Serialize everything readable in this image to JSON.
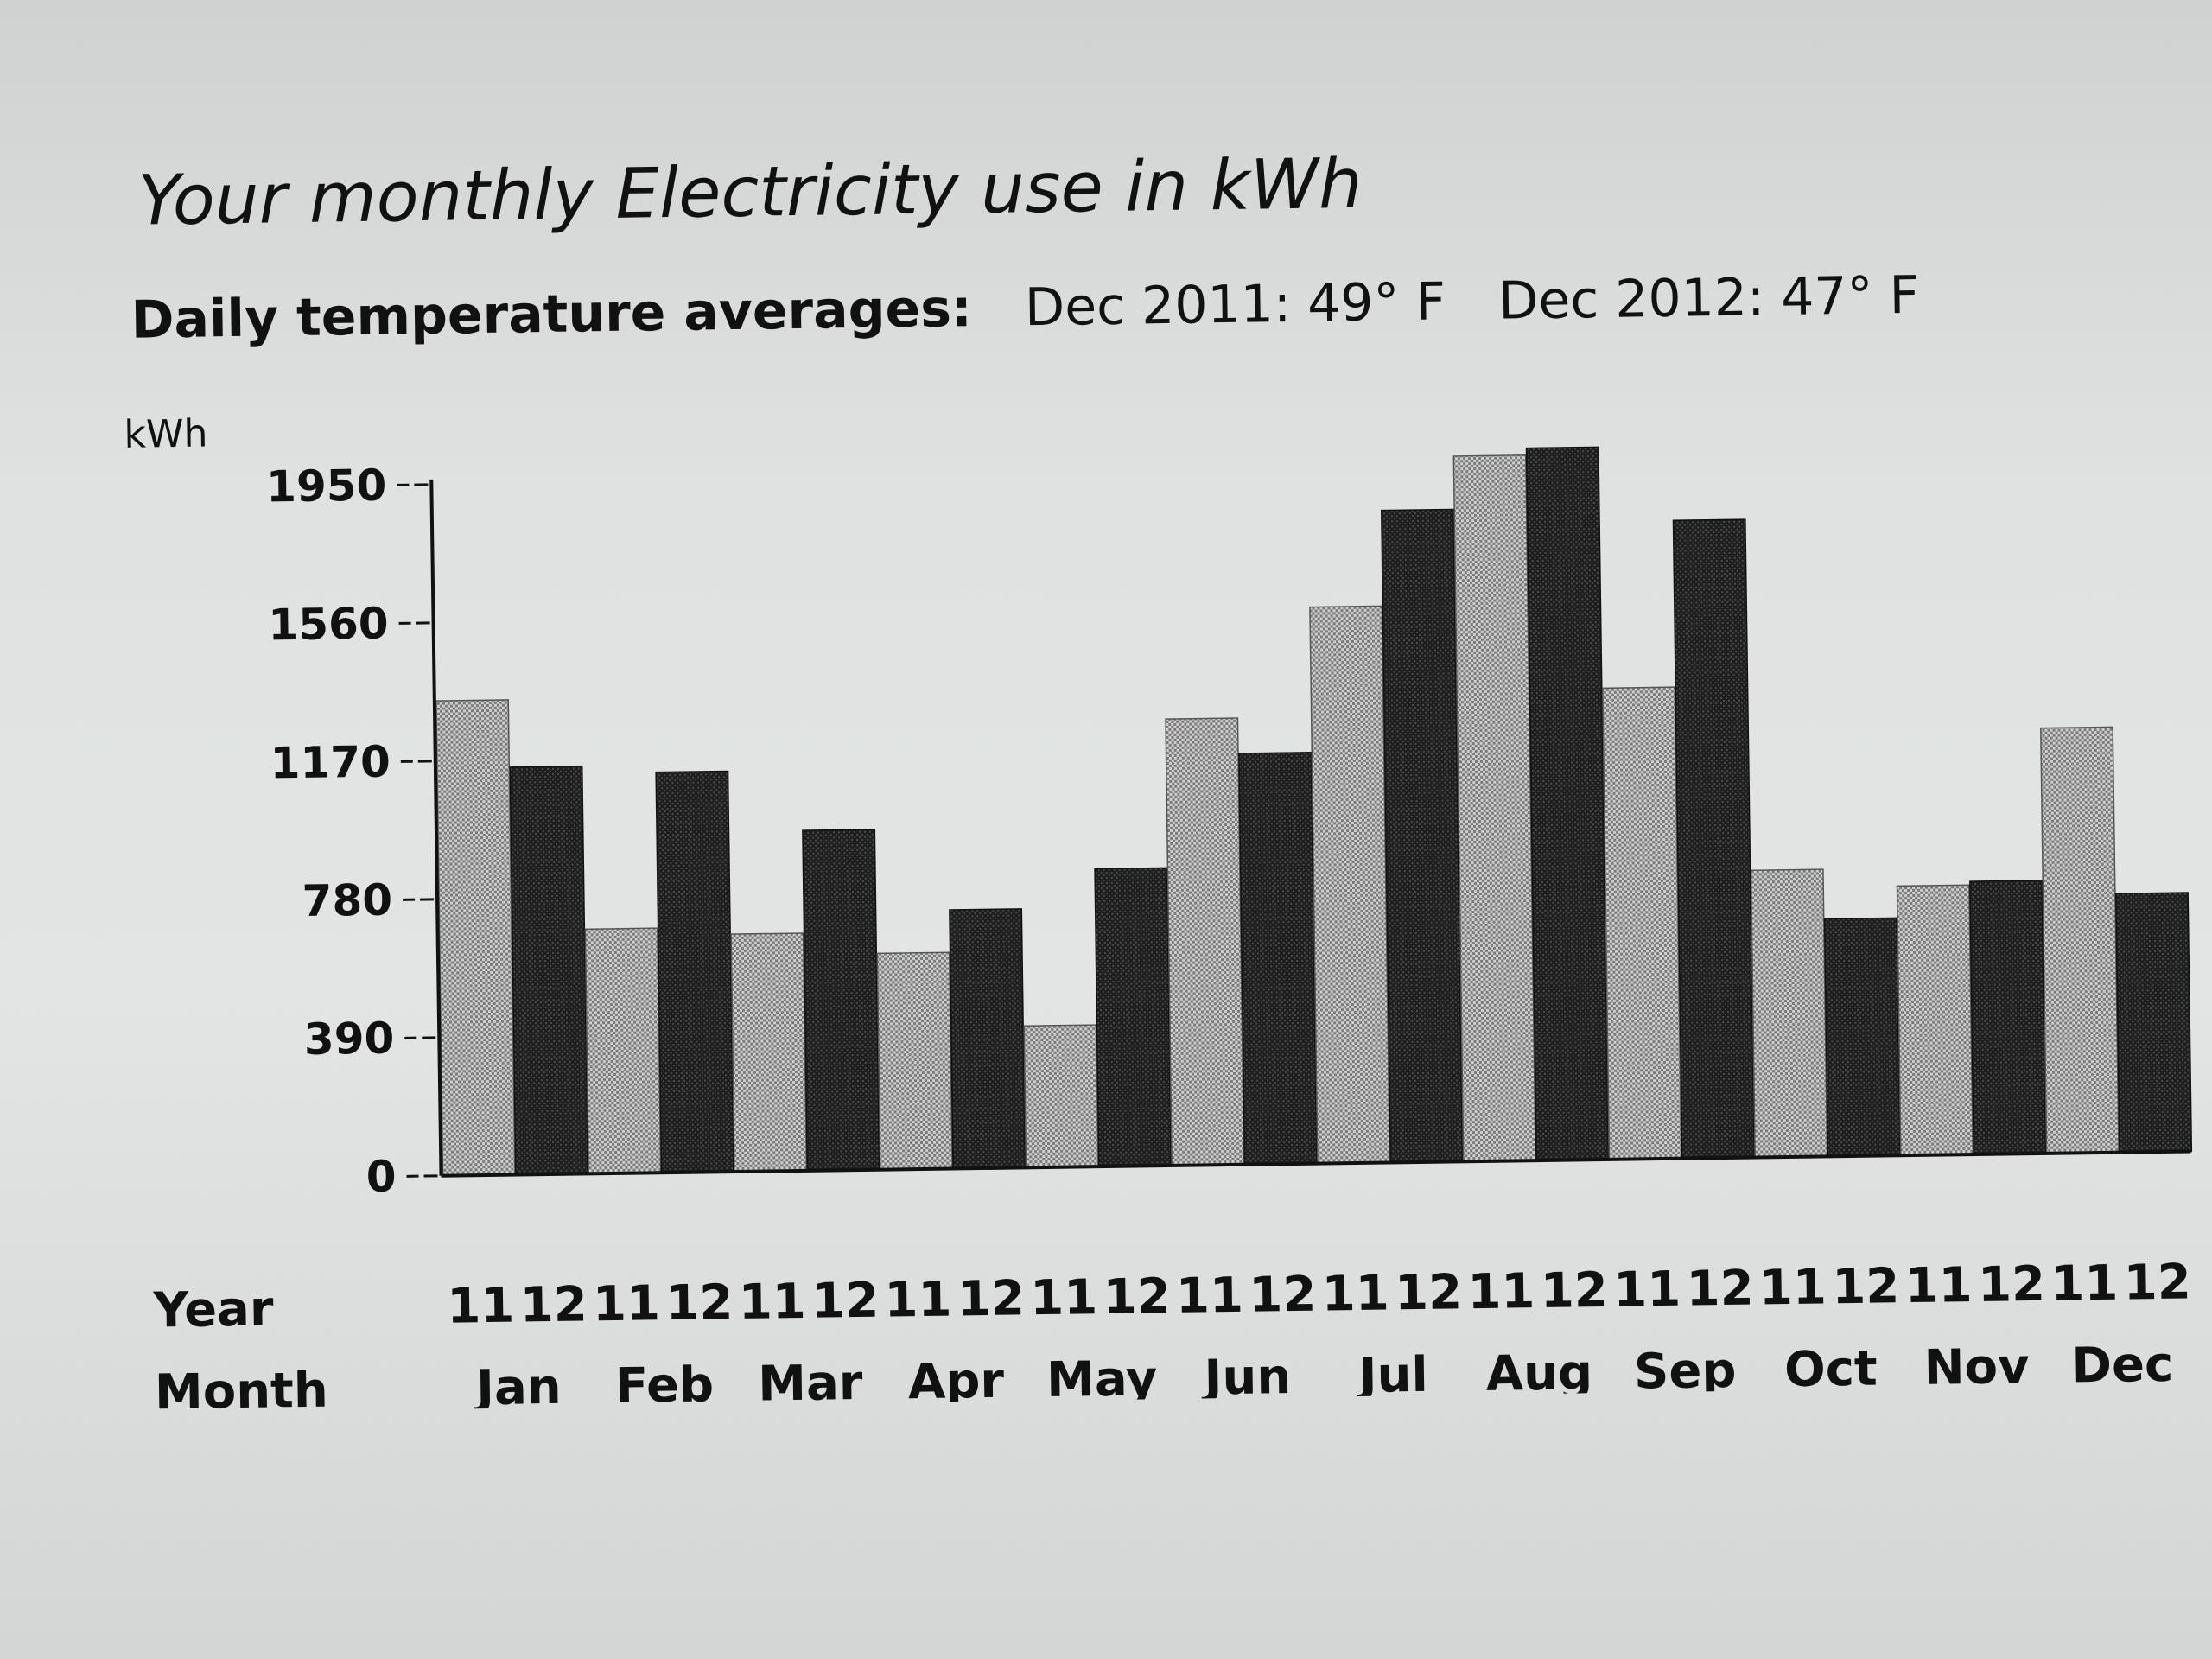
{
  "header": {
    "title": "Your monthly Electricity use in kWh",
    "temp_label": "Daily temperature averages:",
    "temp_2011": "Dec 2011: 49° F",
    "temp_2012": "Dec 2012: 47° F"
  },
  "axis": {
    "unit": "kWh",
    "row_year": "Year",
    "row_month": "Month"
  },
  "colors": {
    "year_11": "#a9a9a9",
    "year_12": "#2b2b2b",
    "axis": "#111111"
  },
  "chart_data": {
    "type": "bar",
    "title": "Your monthly Electricity use in kWh",
    "ylabel": "kWh",
    "xlabel": "",
    "ylim": [
      0,
      1950
    ],
    "yticks": [
      0,
      390,
      780,
      1170,
      1560,
      1950
    ],
    "ytick_labels": [
      "0",
      "390",
      "780",
      "1170",
      "1560",
      "1950"
    ],
    "grid": false,
    "categories": [
      "Jan",
      "Feb",
      "Mar",
      "Apr",
      "May",
      "Jun",
      "Jul",
      "Aug",
      "Sep",
      "Oct",
      "Nov",
      "Dec"
    ],
    "series": [
      {
        "name": "11",
        "values": [
          1340,
          690,
          670,
          610,
          400,
          1260,
          1570,
          1990,
          1330,
          810,
          760,
          1200
        ]
      },
      {
        "name": "12",
        "values": [
          1150,
          1130,
          960,
          730,
          840,
          1160,
          1840,
          2010,
          1800,
          670,
          770,
          730
        ]
      }
    ]
  }
}
